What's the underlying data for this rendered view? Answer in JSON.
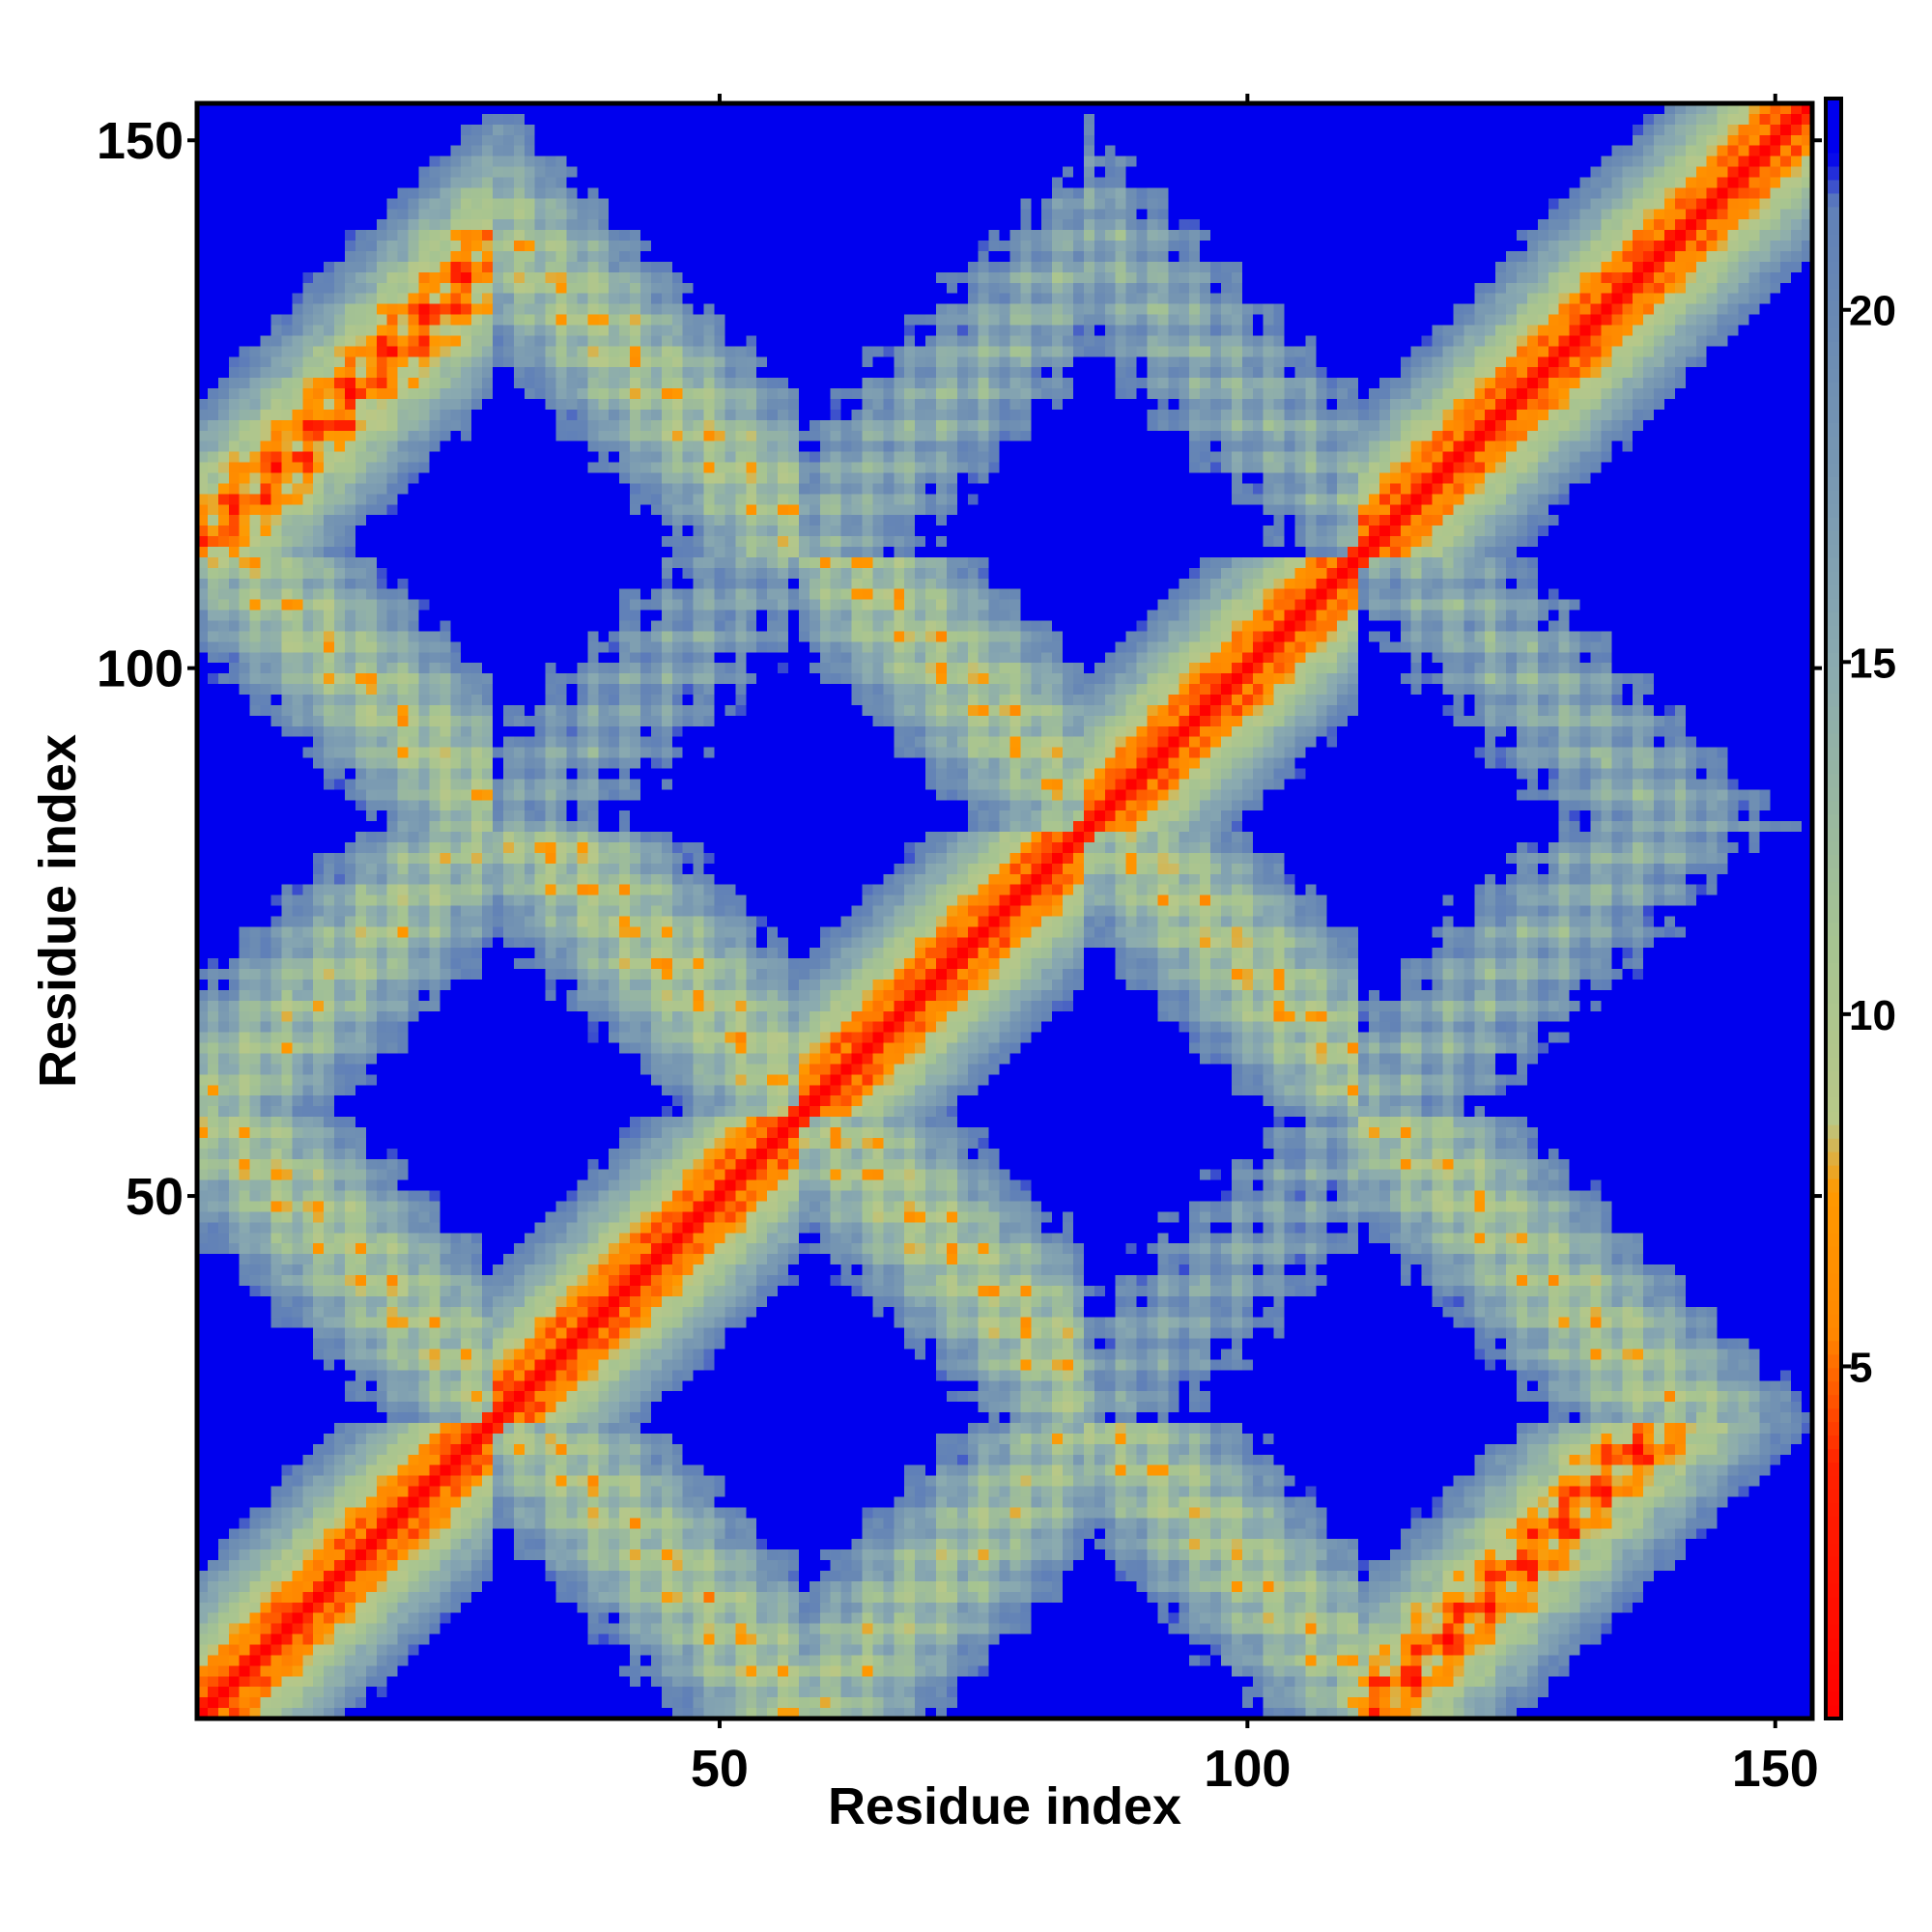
{
  "chart_data": {
    "type": "heatmap",
    "title": "",
    "xlabel": "Residue index",
    "ylabel": "Residue index",
    "n_residues": 153,
    "xlim": [
      1,
      153
    ],
    "ylim": [
      1,
      153
    ],
    "x_ticks": [
      50,
      100,
      150
    ],
    "y_ticks": [
      50,
      100,
      150
    ],
    "x_tick_labels": [
      "50",
      "100",
      "150"
    ],
    "y_tick_labels": [
      "50",
      "100",
      "150"
    ],
    "colorbar": {
      "range": [
        0,
        23
      ],
      "ticks": [
        5,
        10,
        15,
        20
      ],
      "tick_labels": [
        "5",
        "10",
        "15",
        "20"
      ],
      "stops": [
        {
          "value": 0,
          "color": "#ff0000"
        },
        {
          "value": 3.6,
          "color": "#ff2200"
        },
        {
          "value": 5.5,
          "color": "#ff8800"
        },
        {
          "value": 7.5,
          "color": "#ff9900"
        },
        {
          "value": 8.5,
          "color": "#b8c888"
        },
        {
          "value": 11,
          "color": "#a6c491"
        },
        {
          "value": 15,
          "color": "#8aaab0"
        },
        {
          "value": 20,
          "color": "#6888b4"
        },
        {
          "value": 21.5,
          "color": "#6080b8"
        },
        {
          "value": 22.2,
          "color": "#0000ee"
        },
        {
          "value": 23,
          "color": "#0000ee"
        }
      ]
    },
    "values_description_only": false,
    "segments": [
      [
        1,
        28
      ],
      [
        29,
        57
      ],
      [
        58,
        84
      ],
      [
        85,
        110
      ],
      [
        111,
        153
      ]
    ],
    "grid": false,
    "legend": "colorbar-right"
  },
  "colors": {
    "far": "#0000ee",
    "near": "#ff0000",
    "mid": "#ff8800",
    "frame": "#000000"
  }
}
